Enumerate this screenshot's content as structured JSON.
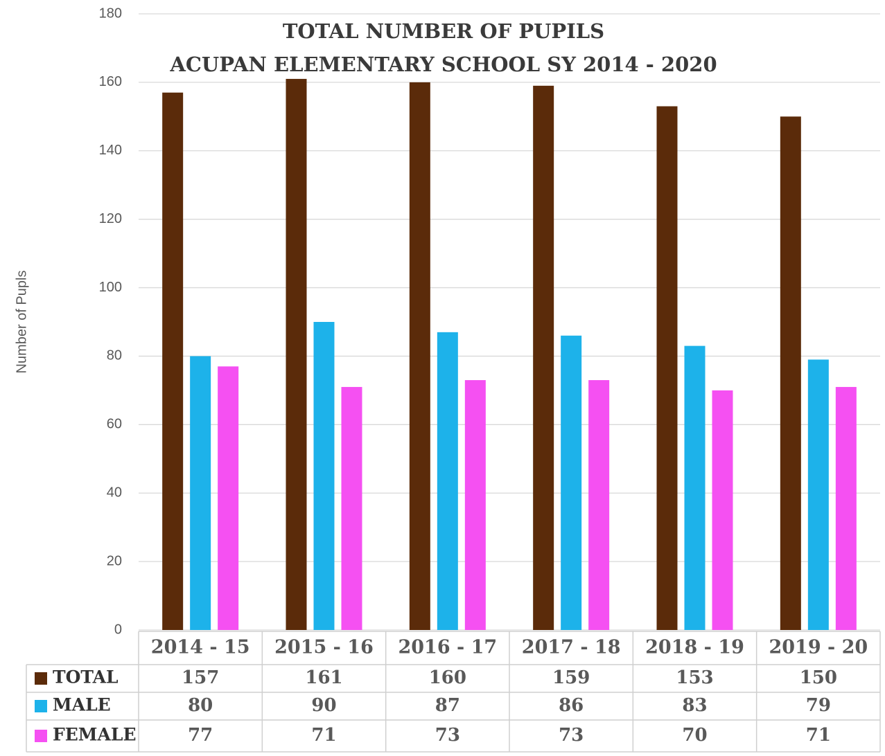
{
  "chart_data": {
    "type": "bar",
    "title": "TOTAL NUMBER OF PUPILS",
    "subtitle": "ACUPAN ELEMENTARY SCHOOL SY 2014 - 2020",
    "y_label": "Number of Pupls",
    "categories": [
      "2014 - 15",
      "2015 - 16",
      "2016 - 17",
      "2017 - 18",
      "2018 - 19",
      "2019 - 20"
    ],
    "series": [
      {
        "name": "TOTAL",
        "color": "#5b2b0a",
        "values": [
          157,
          161,
          160,
          159,
          153,
          150
        ]
      },
      {
        "name": "MALE",
        "color": "#1db2ea",
        "values": [
          80,
          90,
          87,
          86,
          83,
          79
        ]
      },
      {
        "name": "FEMALE",
        "color": "#f550f2",
        "values": [
          77,
          71,
          73,
          73,
          70,
          71
        ]
      }
    ],
    "ylim": [
      0,
      180
    ],
    "yticks": [
      0,
      20,
      40,
      60,
      80,
      100,
      120,
      140,
      160,
      180
    ],
    "grid": true,
    "data_table": true
  }
}
